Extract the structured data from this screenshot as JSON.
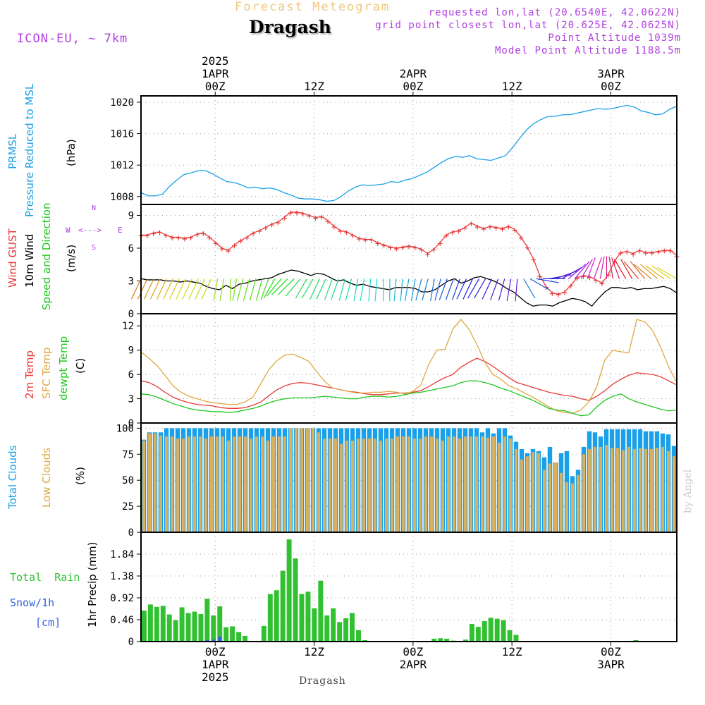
{
  "header": {
    "product_title": "Forecast Meteogram",
    "location": "Dragash",
    "model": "ICON-EU, ~ 7km",
    "requested": "requested lon,lat (20.6540E, 42.0622N)",
    "grid_point": "grid point closest lon,lat (20.625E, 42.0625N)",
    "point_altitude": "Point Altitude 1039m",
    "model_altitude": "Model Point Altitude 1188.5m",
    "footer_location": "Dragash",
    "credit": "by Angel"
  },
  "time_axis": {
    "top_labels": [
      {
        "hour": "00Z",
        "date": "1APR",
        "year": "2025"
      },
      {
        "hour": "12Z",
        "date": "",
        "year": ""
      },
      {
        "hour": "00Z",
        "date": "2APR",
        "year": ""
      },
      {
        "hour": "12Z",
        "date": "",
        "year": ""
      },
      {
        "hour": "00Z",
        "date": "3APR",
        "year": ""
      },
      {
        "hour": "12Z",
        "date": "",
        "year": ""
      }
    ],
    "bottom_labels": [
      {
        "hour": "00Z",
        "date": "1APR",
        "year": "2025"
      },
      {
        "hour": "12Z",
        "date": "",
        "year": ""
      },
      {
        "hour": "00Z",
        "date": "2APR",
        "year": ""
      },
      {
        "hour": "12Z",
        "date": "",
        "year": ""
      },
      {
        "hour": "00Z",
        "date": "3APR",
        "year": ""
      },
      {
        "hour": "12Z",
        "date": "",
        "year": ""
      }
    ]
  },
  "panel_labels": {
    "pressure": {
      "a": "PRMSL",
      "b": "Pressure Reduced to MSL",
      "unit": "(hPa)"
    },
    "wind": {
      "a": "Wind GUST",
      "b": "10m Wind",
      "c": "Speed and Direction",
      "unit": "(m/s)",
      "compass_w": "W",
      "compass_e": "E",
      "compass_n": "N",
      "compass_s": "S",
      "compass_arrows": "<--->"
    },
    "temp": {
      "a": "2m Temp",
      "b": "SFC Temp",
      "c": "dewpt Temp",
      "unit": "(C)"
    },
    "clouds": {
      "a": "Total Clouds",
      "b": "Low Clouds",
      "unit": "(%)"
    },
    "precip": {
      "a": "Total  Rain",
      "b": "Snow/1h",
      "c": "[cm]",
      "unit": "1hr Precip (mm)"
    }
  },
  "colors": {
    "pressure": "#1aa0e8",
    "gust": "#e83838",
    "wind": "#000000",
    "temp2m": "#e83838",
    "sfctemp": "#e0a840",
    "dewpt": "#20c820",
    "total_clouds": "#1aa0e8",
    "low_clouds": "#d8b060",
    "rain": "#30c030",
    "snow": "#3060e0",
    "label_purple": "#b040e0",
    "title_orange": "#f0c880"
  },
  "chart_data": [
    {
      "type": "line",
      "title": "PRMSL Pressure Reduced to MSL",
      "ylabel": "(hPa)",
      "ylim": [
        1007,
        1020.8
      ],
      "yticks": [
        1008,
        1012,
        1016,
        1020
      ],
      "x_hours_start": -9,
      "x_hours_end": 56,
      "series": [
        {
          "name": "PRMSL",
          "values": [
            1008.5,
            1008.1,
            1008.1,
            1008.3,
            1009.3,
            1010.1,
            1010.8,
            1011.0,
            1011.3,
            1011.3,
            1010.9,
            1010.4,
            1009.9,
            1009.8,
            1009.5,
            1009.1,
            1009.2,
            1009.0,
            1009.1,
            1008.9,
            1008.5,
            1008.2,
            1007.8,
            1007.7,
            1007.7,
            1007.6,
            1007.4,
            1007.5,
            1008.0,
            1008.7,
            1009.2,
            1009.5,
            1009.4,
            1009.5,
            1009.6,
            1009.9,
            1009.8,
            1010.1,
            1010.3,
            1010.7,
            1011.1,
            1011.7,
            1012.3,
            1012.8,
            1013.1,
            1013.0,
            1013.2,
            1012.8,
            1012.7,
            1012.6,
            1012.9,
            1013.2,
            1014.2,
            1015.4,
            1016.5,
            1017.3,
            1017.8,
            1018.2,
            1018.2,
            1018.4,
            1018.4,
            1018.6,
            1018.8,
            1019.0,
            1019.2,
            1019.1,
            1019.2,
            1019.4,
            1019.6,
            1019.4,
            1018.9,
            1018.7,
            1018.4,
            1018.5,
            1019.1,
            1019.5
          ]
        }
      ]
    },
    {
      "type": "line",
      "title": "Wind GUST / 10m Wind Speed and Direction",
      "ylabel": "(m/s)",
      "ylim": [
        0,
        10
      ],
      "yticks": [
        0,
        3,
        6,
        9
      ],
      "x_hours_start": -9,
      "x_hours_end": 56,
      "series": [
        {
          "name": "Wind GUST",
          "values": [
            7.2,
            7.2,
            7.4,
            7.5,
            7.2,
            7.0,
            7.0,
            6.9,
            7.0,
            7.3,
            7.4,
            7.0,
            6.5,
            6.0,
            5.8,
            6.3,
            6.7,
            7.0,
            7.4,
            7.6,
            7.9,
            8.2,
            8.4,
            8.8,
            9.3,
            9.3,
            9.2,
            9.0,
            8.8,
            8.9,
            8.5,
            8.0,
            7.6,
            7.5,
            7.2,
            6.9,
            6.8,
            6.8,
            6.5,
            6.3,
            6.1,
            6.0,
            6.1,
            6.2,
            6.1,
            5.9,
            5.5,
            5.9,
            6.5,
            7.2,
            7.5,
            7.6,
            7.9,
            8.3,
            8.0,
            7.8,
            8.0,
            7.9,
            7.8,
            8.0,
            7.7,
            7.0,
            6.1,
            5.0,
            3.5,
            2.5,
            1.9,
            1.8,
            2.0,
            2.6,
            3.3,
            3.5,
            3.4,
            3.1,
            2.8,
            3.6,
            4.8,
            5.6,
            5.7,
            5.5,
            5.8,
            5.6,
            5.6,
            5.7,
            5.8,
            5.8,
            5.3
          ]
        },
        {
          "name": "10m Wind",
          "values": [
            3.2,
            3.1,
            3.1,
            3.1,
            3.0,
            3.0,
            2.9,
            3.0,
            2.9,
            2.8,
            2.5,
            2.3,
            2.2,
            2.6,
            2.3,
            2.7,
            2.8,
            3.0,
            3.1,
            3.2,
            3.3,
            3.6,
            3.8,
            4.0,
            3.9,
            3.7,
            3.5,
            3.7,
            3.6,
            3.3,
            3.0,
            3.1,
            2.8,
            2.6,
            2.7,
            2.5,
            2.4,
            2.3,
            2.2,
            2.4,
            2.4,
            2.4,
            2.3,
            2.0,
            2.0,
            2.2,
            2.6,
            3.0,
            3.2,
            2.8,
            3.0,
            3.3,
            3.4,
            3.2,
            3.0,
            2.7,
            2.3,
            2.0,
            1.5,
            1.0,
            0.7,
            0.8,
            0.8,
            0.7,
            1.0,
            1.2,
            1.4,
            1.3,
            1.1,
            0.7,
            1.4,
            2.0,
            2.4,
            2.4,
            2.3,
            2.4,
            2.2,
            2.3,
            2.3,
            2.4,
            2.5,
            2.3,
            1.9
          ]
        }
      ],
      "wind_dir_deg": [
        25,
        25,
        25,
        25,
        25,
        25,
        25,
        25,
        25,
        25,
        25,
        25,
        10,
        10,
        0,
        10,
        15,
        15,
        15,
        15,
        20,
        30,
        40,
        45,
        45,
        40,
        30,
        30,
        25,
        25,
        20,
        20,
        15,
        15,
        10,
        10,
        5,
        5,
        0,
        0,
        5,
        5,
        10,
        10,
        15,
        15,
        10,
        15,
        20,
        20,
        20,
        25,
        25,
        30,
        30,
        25,
        20,
        15,
        10,
        5,
        330,
        300,
        280,
        270,
        260,
        250,
        240,
        230,
        220,
        210,
        200,
        200,
        190,
        180,
        170,
        160,
        150,
        150,
        140,
        140,
        130,
        130,
        125,
        125,
        120
      ]
    },
    {
      "type": "line",
      "title": "2m Temp / SFC Temp / dewpt Temp",
      "ylabel": "(C)",
      "ylim": [
        0,
        13.5
      ],
      "yticks": [
        0,
        3,
        6,
        9,
        12
      ],
      "x_hours_start": -9,
      "x_hours_end": 56,
      "series": [
        {
          "name": "2m Temp",
          "values": [
            5.2,
            5.0,
            4.5,
            3.8,
            3.2,
            2.8,
            2.5,
            2.3,
            2.2,
            2.1,
            1.9,
            1.8,
            1.8,
            1.9,
            2.2,
            2.6,
            3.4,
            4.1,
            4.6,
            4.9,
            5.0,
            4.9,
            4.7,
            4.5,
            4.3,
            4.1,
            3.9,
            3.8,
            3.6,
            3.5,
            3.5,
            3.6,
            3.7,
            3.7,
            3.8,
            4.0,
            4.5,
            5.1,
            5.6,
            6.0,
            6.9,
            7.5,
            8.0,
            7.6,
            7.0,
            6.3,
            5.6,
            5.0,
            4.7,
            4.4,
            4.1,
            3.8,
            3.6,
            3.4,
            3.3,
            3.0,
            2.8,
            3.3,
            4.0,
            4.8,
            5.4,
            5.9,
            6.2,
            6.1,
            6.0,
            5.7,
            5.2,
            4.7
          ]
        },
        {
          "name": "SFC Temp",
          "values": [
            8.8,
            8.0,
            7.1,
            5.9,
            4.6,
            3.8,
            3.3,
            3.0,
            2.7,
            2.5,
            2.4,
            2.3,
            2.3,
            2.6,
            3.2,
            4.9,
            6.6,
            7.7,
            8.4,
            8.5,
            8.1,
            7.6,
            6.3,
            5.1,
            4.3,
            4.1,
            3.9,
            3.7,
            3.7,
            3.8,
            3.8,
            3.9,
            3.8,
            3.6,
            3.9,
            4.7,
            7.3,
            9.0,
            9.1,
            11.6,
            12.8,
            11.6,
            9.7,
            7.5,
            6.0,
            5.4,
            4.6,
            4.2,
            3.7,
            3.2,
            2.6,
            2.0,
            1.5,
            1.3,
            1.2,
            1.6,
            2.6,
            4.5,
            7.8,
            9.0,
            8.8,
            8.7,
            12.8,
            12.5,
            11.4,
            9.3,
            6.9,
            5.0
          ]
        },
        {
          "name": "dewpt Temp",
          "values": [
            3.6,
            3.5,
            3.2,
            2.8,
            2.4,
            2.1,
            1.8,
            1.6,
            1.5,
            1.4,
            1.4,
            1.3,
            1.4,
            1.6,
            1.8,
            2.1,
            2.5,
            2.8,
            3.0,
            3.1,
            3.1,
            3.1,
            3.2,
            3.3,
            3.2,
            3.1,
            3.0,
            3.0,
            3.2,
            3.3,
            3.3,
            3.2,
            3.3,
            3.5,
            3.7,
            3.8,
            4.0,
            4.2,
            4.4,
            4.6,
            5.0,
            5.2,
            5.2,
            5.0,
            4.7,
            4.3,
            4.0,
            3.6,
            3.2,
            2.8,
            2.3,
            1.8,
            1.6,
            1.5,
            1.2,
            0.9,
            1.0,
            2.0,
            2.8,
            3.3,
            3.6,
            3.0,
            2.6,
            2.3,
            2.0,
            1.7,
            1.5,
            1.6
          ]
        }
      ]
    },
    {
      "type": "bar",
      "title": "Total Clouds / Low Clouds",
      "ylabel": "(%)",
      "ylim": [
        0,
        105
      ],
      "yticks": [
        0,
        25,
        50,
        75,
        100
      ],
      "x_hours_start": -9,
      "x_hours_end": 56,
      "series": [
        {
          "name": "Total Clouds",
          "values": [
            89,
            96,
            96,
            96,
            100,
            100,
            100,
            100,
            100,
            100,
            100,
            100,
            100,
            100,
            100,
            100,
            100,
            100,
            100,
            100,
            100,
            100,
            100,
            100,
            100,
            100,
            100,
            100,
            100,
            100,
            100,
            100,
            100,
            100,
            100,
            100,
            100,
            100,
            100,
            100,
            100,
            100,
            100,
            100,
            100,
            100,
            100,
            100,
            100,
            100,
            100,
            100,
            100,
            100,
            100,
            100,
            100,
            100,
            100,
            100,
            96,
            100,
            95,
            100,
            100,
            93,
            87,
            80,
            76,
            80,
            78,
            72,
            82,
            67,
            76,
            78,
            54,
            60,
            82,
            97,
            96,
            92,
            99,
            99,
            99,
            99,
            99,
            99,
            99,
            97,
            97,
            97,
            95,
            94,
            83
          ]
        },
        {
          "name": "Low Clouds",
          "values": [
            88,
            95,
            95,
            93,
            92,
            92,
            90,
            90,
            92,
            92,
            92,
            90,
            92,
            92,
            92,
            88,
            92,
            92,
            92,
            90,
            92,
            92,
            88,
            92,
            92,
            92,
            100,
            100,
            100,
            100,
            100,
            96,
            90,
            90,
            90,
            85,
            88,
            88,
            90,
            90,
            90,
            90,
            88,
            90,
            90,
            92,
            92,
            92,
            90,
            90,
            92,
            92,
            90,
            88,
            92,
            92,
            90,
            92,
            92,
            92,
            92,
            91,
            92,
            86,
            92,
            90,
            80,
            70,
            73,
            77,
            76,
            60,
            66,
            67,
            57,
            48,
            47,
            55,
            75,
            80,
            82,
            82,
            84,
            81,
            81,
            79,
            82,
            80,
            81,
            80,
            80,
            81,
            82,
            78,
            73
          ]
        }
      ]
    },
    {
      "type": "bar",
      "title": "Total Rain / Snow 1h",
      "ylabel": "1hr Precip (mm)",
      "ylim": [
        0,
        2.3
      ],
      "yticks": [
        0,
        0.46,
        0.92,
        1.38,
        1.84
      ],
      "x_hours_start": -9,
      "x_hours_end": 56,
      "series": [
        {
          "name": "Total Rain",
          "values": [
            0.65,
            0.78,
            0.73,
            0.75,
            0.57,
            0.45,
            0.72,
            0.6,
            0.63,
            0.58,
            0.9,
            0.55,
            0.74,
            0.3,
            0.32,
            0.2,
            0.12,
            0.0,
            0.0,
            0.33,
            1.0,
            1.08,
            1.49,
            2.15,
            1.75,
            1.0,
            1.05,
            0.7,
            1.28,
            0.55,
            0.7,
            0.41,
            0.49,
            0.6,
            0.24,
            0.03,
            0.0,
            0.0,
            0.0,
            0.0,
            0.0,
            0.0,
            0.0,
            0.0,
            0.0,
            0.0,
            0.06,
            0.07,
            0.06,
            0.02,
            0.0,
            0.04,
            0.37,
            0.31,
            0.43,
            0.5,
            0.48,
            0.45,
            0.24,
            0.14,
            0.0,
            0.0,
            0.0,
            0.0,
            0.0,
            0.0,
            0.0,
            0.0,
            0.0,
            0.0,
            0.0,
            0.0,
            0.0,
            0.0,
            0.0,
            0.0,
            0.0,
            0.0,
            0.03,
            0.0,
            0.0,
            0.0,
            0.0,
            0.0,
            0.0
          ]
        },
        {
          "name": "Snow/1h",
          "values": [
            0,
            0,
            0,
            0,
            0,
            0,
            0,
            0,
            0,
            0,
            0.03,
            0.04,
            0.1,
            0,
            0,
            0,
            0,
            0,
            0,
            0,
            0,
            0,
            0,
            0,
            0,
            0,
            0,
            0,
            0,
            0,
            0,
            0,
            0,
            0,
            0,
            0,
            0,
            0,
            0,
            0,
            0,
            0,
            0,
            0,
            0,
            0,
            0,
            0,
            0,
            0,
            0,
            0,
            0,
            0,
            0,
            0,
            0,
            0,
            0,
            0,
            0,
            0,
            0,
            0,
            0,
            0,
            0,
            0,
            0,
            0,
            0,
            0,
            0,
            0,
            0,
            0,
            0,
            0,
            0,
            0,
            0,
            0,
            0,
            0,
            0
          ]
        }
      ]
    }
  ]
}
